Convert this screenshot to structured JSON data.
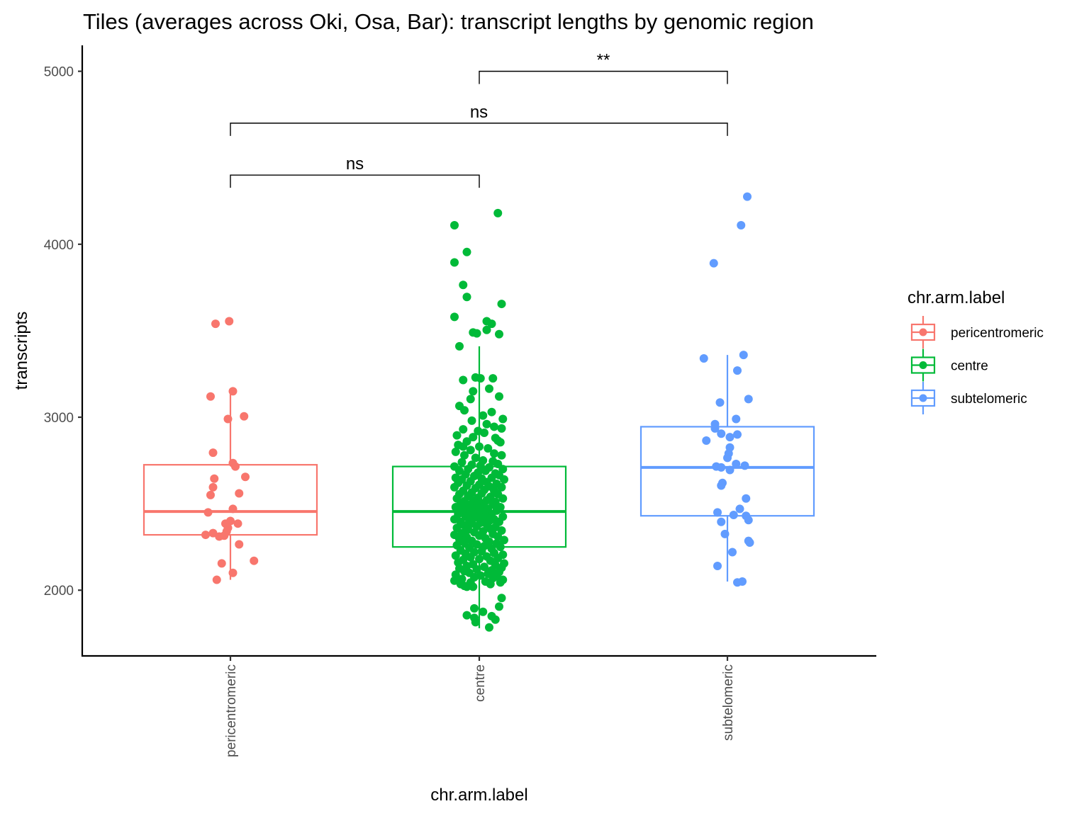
{
  "chart_data": {
    "type": "box",
    "title": "Tiles (averages across Oki, Osa, Bar): transcript lengths by genomic region",
    "xlabel": "chr.arm.label",
    "ylabel": "transcripts",
    "ylim": [
      1620,
      5150
    ],
    "yticks": [
      2000,
      3000,
      4000,
      5000
    ],
    "categories": [
      "pericentromeric",
      "centre",
      "subtelomeric"
    ],
    "colors": {
      "pericentromeric": "#F8766D",
      "centre": "#00BA38",
      "subtelomeric": "#619CFF"
    },
    "legend": {
      "title": "chr.arm.label",
      "position": "right",
      "entries": [
        "pericentromeric",
        "centre",
        "subtelomeric"
      ]
    },
    "boxes": [
      {
        "category": "pericentromeric",
        "whisker_low": 2060,
        "q1": 2320,
        "median": 2455,
        "q3": 2725,
        "whisker_high": 3150
      },
      {
        "category": "centre",
        "whisker_low": 1780,
        "q1": 2250,
        "median": 2455,
        "q3": 2715,
        "whisker_high": 3410
      },
      {
        "category": "subtelomeric",
        "whisker_low": 2050,
        "q1": 2430,
        "median": 2710,
        "q3": 2945,
        "whisker_high": 3360
      }
    ],
    "points": {
      "pericentromeric": [
        {
          "x": -0.12,
          "y": 3540
        },
        {
          "x": -0.01,
          "y": 3555
        },
        {
          "x": -0.16,
          "y": 3120
        },
        {
          "x": 0.02,
          "y": 3150
        },
        {
          "x": 0.11,
          "y": 3005
        },
        {
          "x": -0.02,
          "y": 2990
        },
        {
          "x": -0.14,
          "y": 2795
        },
        {
          "x": 0.02,
          "y": 2735
        },
        {
          "x": 0.04,
          "y": 2715
        },
        {
          "x": 0.12,
          "y": 2655
        },
        {
          "x": -0.13,
          "y": 2645
        },
        {
          "x": -0.14,
          "y": 2595
        },
        {
          "x": -0.16,
          "y": 2550
        },
        {
          "x": 0.07,
          "y": 2560
        },
        {
          "x": 0.02,
          "y": 2470
        },
        {
          "x": -0.18,
          "y": 2450
        },
        {
          "x": 0.0,
          "y": 2400
        },
        {
          "x": -0.04,
          "y": 2385
        },
        {
          "x": 0.06,
          "y": 2385
        },
        {
          "x": -0.02,
          "y": 2360
        },
        {
          "x": -0.03,
          "y": 2340
        },
        {
          "x": -0.14,
          "y": 2330
        },
        {
          "x": -0.2,
          "y": 2320
        },
        {
          "x": -0.09,
          "y": 2310
        },
        {
          "x": -0.05,
          "y": 2315
        },
        {
          "x": 0.07,
          "y": 2265
        },
        {
          "x": 0.19,
          "y": 2170
        },
        {
          "x": -0.07,
          "y": 2155
        },
        {
          "x": 0.02,
          "y": 2100
        },
        {
          "x": -0.11,
          "y": 2060
        }
      ],
      "centre": [
        {
          "x": 0.15,
          "y": 4180
        },
        {
          "x": -0.2,
          "y": 4110
        },
        {
          "x": -0.1,
          "y": 3955
        },
        {
          "x": -0.2,
          "y": 3895
        },
        {
          "x": -0.13,
          "y": 3765
        },
        {
          "x": -0.1,
          "y": 3695
        },
        {
          "x": 0.18,
          "y": 3655
        },
        {
          "x": -0.2,
          "y": 3580
        },
        {
          "x": 0.06,
          "y": 3555
        },
        {
          "x": 0.1,
          "y": 3540
        },
        {
          "x": -0.05,
          "y": 3490
        },
        {
          "x": -0.02,
          "y": 3485
        },
        {
          "x": 0.16,
          "y": 3480
        },
        {
          "x": 0.06,
          "y": 3505
        },
        {
          "x": -0.16,
          "y": 3410
        },
        {
          "x": -0.03,
          "y": 3230
        },
        {
          "x": 0.01,
          "y": 3225
        },
        {
          "x": 0.11,
          "y": 3225
        },
        {
          "x": -0.13,
          "y": 3215
        },
        {
          "x": 0.08,
          "y": 3165
        },
        {
          "x": -0.05,
          "y": 3150
        },
        {
          "x": 0.16,
          "y": 3120
        },
        {
          "x": -0.07,
          "y": 3105
        },
        {
          "x": -0.16,
          "y": 3065
        },
        {
          "x": -0.12,
          "y": 3040
        },
        {
          "x": 0.03,
          "y": 3010
        },
        {
          "x": 0.1,
          "y": 3030
        },
        {
          "x": 0.19,
          "y": 2990
        },
        {
          "x": -0.06,
          "y": 2980
        },
        {
          "x": 0.06,
          "y": 2960
        },
        {
          "x": -0.13,
          "y": 2930
        },
        {
          "x": 0.12,
          "y": 2945
        },
        {
          "x": 0.18,
          "y": 2935
        },
        {
          "x": -0.01,
          "y": 2920
        },
        {
          "x": 0.04,
          "y": 2910
        },
        {
          "x": -0.18,
          "y": 2895
        },
        {
          "x": -0.05,
          "y": 2885
        },
        {
          "x": 0.13,
          "y": 2880
        },
        {
          "x": 0.15,
          "y": 2865
        },
        {
          "x": -0.1,
          "y": 2860
        },
        {
          "x": 0.17,
          "y": 2855
        },
        {
          "x": -0.17,
          "y": 2840
        },
        {
          "x": -0.13,
          "y": 2830
        },
        {
          "x": 0.0,
          "y": 2830
        },
        {
          "x": 0.07,
          "y": 2820
        },
        {
          "x": -0.07,
          "y": 2810
        },
        {
          "x": -0.19,
          "y": 2800
        },
        {
          "x": 0.12,
          "y": 2790
        },
        {
          "x": -0.12,
          "y": 2780
        },
        {
          "x": 0.18,
          "y": 2780
        },
        {
          "x": -0.03,
          "y": 2765
        },
        {
          "x": 0.03,
          "y": 2750
        },
        {
          "x": 0.11,
          "y": 2745
        },
        {
          "x": -0.14,
          "y": 2740
        },
        {
          "x": 0.15,
          "y": 2730
        },
        {
          "x": -0.06,
          "y": 2725
        },
        {
          "x": 0.01,
          "y": 2720
        },
        {
          "x": -0.2,
          "y": 2715
        },
        {
          "x": 0.08,
          "y": 2710
        },
        {
          "x": -0.09,
          "y": 2700
        },
        {
          "x": 0.19,
          "y": 2700
        },
        {
          "x": -0.16,
          "y": 2690
        },
        {
          "x": 0.05,
          "y": 2690
        },
        {
          "x": -0.01,
          "y": 2680
        },
        {
          "x": 0.13,
          "y": 2675
        },
        {
          "x": -0.11,
          "y": 2670
        },
        {
          "x": 0.16,
          "y": 2665
        },
        {
          "x": -0.04,
          "y": 2660
        },
        {
          "x": -0.19,
          "y": 2650
        },
        {
          "x": 0.1,
          "y": 2650
        },
        {
          "x": 0.02,
          "y": 2645
        },
        {
          "x": -0.14,
          "y": 2640
        },
        {
          "x": 0.2,
          "y": 2640
        },
        {
          "x": -0.07,
          "y": 2630
        },
        {
          "x": 0.06,
          "y": 2625
        },
        {
          "x": -0.17,
          "y": 2620
        },
        {
          "x": 0.14,
          "y": 2615
        },
        {
          "x": 0.0,
          "y": 2610
        },
        {
          "x": -0.1,
          "y": 2605
        },
        {
          "x": 0.08,
          "y": 2600
        },
        {
          "x": -0.2,
          "y": 2595
        },
        {
          "x": 0.18,
          "y": 2595
        },
        {
          "x": -0.03,
          "y": 2590
        },
        {
          "x": 0.04,
          "y": 2580
        },
        {
          "x": -0.13,
          "y": 2575
        },
        {
          "x": 0.12,
          "y": 2575
        },
        {
          "x": -0.06,
          "y": 2565
        },
        {
          "x": 0.02,
          "y": 2560
        },
        {
          "x": -0.16,
          "y": 2555
        },
        {
          "x": 0.15,
          "y": 2555
        },
        {
          "x": -0.09,
          "y": 2545
        },
        {
          "x": 0.09,
          "y": 2540
        },
        {
          "x": -0.01,
          "y": 2535
        },
        {
          "x": -0.18,
          "y": 2530
        },
        {
          "x": 0.19,
          "y": 2530
        },
        {
          "x": -0.05,
          "y": 2520
        },
        {
          "x": 0.06,
          "y": 2520
        },
        {
          "x": -0.12,
          "y": 2515
        },
        {
          "x": 0.13,
          "y": 2510
        },
        {
          "x": 0.01,
          "y": 2505
        },
        {
          "x": -0.15,
          "y": 2500
        },
        {
          "x": -0.08,
          "y": 2495
        },
        {
          "x": 0.11,
          "y": 2495
        },
        {
          "x": -0.02,
          "y": 2490
        },
        {
          "x": 0.04,
          "y": 2485
        },
        {
          "x": -0.19,
          "y": 2480
        },
        {
          "x": 0.17,
          "y": 2480
        },
        {
          "x": -0.1,
          "y": 2475
        },
        {
          "x": 0.07,
          "y": 2470
        },
        {
          "x": -0.04,
          "y": 2470
        },
        {
          "x": 0.0,
          "y": 2465
        },
        {
          "x": -0.14,
          "y": 2460
        },
        {
          "x": 0.14,
          "y": 2460
        },
        {
          "x": -0.07,
          "y": 2455
        },
        {
          "x": 0.03,
          "y": 2450
        },
        {
          "x": -0.01,
          "y": 2445
        },
        {
          "x": -0.17,
          "y": 2440
        },
        {
          "x": 0.1,
          "y": 2440
        },
        {
          "x": -0.05,
          "y": 2435
        },
        {
          "x": 0.05,
          "y": 2430
        },
        {
          "x": -0.11,
          "y": 2425
        },
        {
          "x": 0.19,
          "y": 2425
        },
        {
          "x": -0.03,
          "y": 2420
        },
        {
          "x": 0.02,
          "y": 2415
        },
        {
          "x": -0.2,
          "y": 2410
        },
        {
          "x": 0.12,
          "y": 2410
        },
        {
          "x": -0.08,
          "y": 2405
        },
        {
          "x": 0.08,
          "y": 2400
        },
        {
          "x": -0.15,
          "y": 2395
        },
        {
          "x": 0.16,
          "y": 2395
        },
        {
          "x": 0.01,
          "y": 2390
        },
        {
          "x": -0.06,
          "y": 2385
        },
        {
          "x": 0.06,
          "y": 2380
        },
        {
          "x": -0.12,
          "y": 2375
        },
        {
          "x": -0.02,
          "y": 2370
        },
        {
          "x": 0.13,
          "y": 2365
        },
        {
          "x": -0.18,
          "y": 2360
        },
        {
          "x": 0.09,
          "y": 2355
        },
        {
          "x": -0.09,
          "y": 2350
        },
        {
          "x": 0.18,
          "y": 2345
        },
        {
          "x": 0.03,
          "y": 2340
        },
        {
          "x": -0.04,
          "y": 2335
        },
        {
          "x": -0.14,
          "y": 2330
        },
        {
          "x": 0.11,
          "y": 2325
        },
        {
          "x": -0.2,
          "y": 2320
        },
        {
          "x": 0.0,
          "y": 2315
        },
        {
          "x": 0.15,
          "y": 2310
        },
        {
          "x": -0.1,
          "y": 2305
        },
        {
          "x": 0.05,
          "y": 2300
        },
        {
          "x": -0.16,
          "y": 2295
        },
        {
          "x": 0.2,
          "y": 2290
        },
        {
          "x": -0.06,
          "y": 2285
        },
        {
          "x": 0.08,
          "y": 2280
        },
        {
          "x": -0.12,
          "y": 2275
        },
        {
          "x": 0.14,
          "y": 2270
        },
        {
          "x": -0.02,
          "y": 2265
        },
        {
          "x": -0.18,
          "y": 2260
        },
        {
          "x": 0.04,
          "y": 2255
        },
        {
          "x": 0.17,
          "y": 2250
        },
        {
          "x": -0.08,
          "y": 2245
        },
        {
          "x": 0.1,
          "y": 2240
        },
        {
          "x": -0.15,
          "y": 2230
        },
        {
          "x": 0.02,
          "y": 2225
        },
        {
          "x": -0.04,
          "y": 2220
        },
        {
          "x": 0.12,
          "y": 2215
        },
        {
          "x": -0.11,
          "y": 2210
        },
        {
          "x": 0.19,
          "y": 2205
        },
        {
          "x": -0.19,
          "y": 2200
        },
        {
          "x": 0.06,
          "y": 2195
        },
        {
          "x": -0.07,
          "y": 2190
        },
        {
          "x": 0.15,
          "y": 2185
        },
        {
          "x": 0.0,
          "y": 2180
        },
        {
          "x": -0.13,
          "y": 2175
        },
        {
          "x": 0.09,
          "y": 2170
        },
        {
          "x": -0.17,
          "y": 2160
        },
        {
          "x": 0.2,
          "y": 2155
        },
        {
          "x": -0.05,
          "y": 2150
        },
        {
          "x": 0.13,
          "y": 2145
        },
        {
          "x": -0.1,
          "y": 2140
        },
        {
          "x": 0.04,
          "y": 2135
        },
        {
          "x": 0.18,
          "y": 2130
        },
        {
          "x": -0.16,
          "y": 2125
        },
        {
          "x": -0.02,
          "y": 2120
        },
        {
          "x": 0.1,
          "y": 2115
        },
        {
          "x": -0.12,
          "y": 2110
        },
        {
          "x": 0.16,
          "y": 2105
        },
        {
          "x": -0.08,
          "y": 2100
        },
        {
          "x": 0.07,
          "y": 2095
        },
        {
          "x": -0.19,
          "y": 2090
        },
        {
          "x": 0.01,
          "y": 2085
        },
        {
          "x": 0.14,
          "y": 2080
        },
        {
          "x": -0.04,
          "y": 2075
        },
        {
          "x": 0.11,
          "y": 2070
        },
        {
          "x": -0.14,
          "y": 2065
        },
        {
          "x": 0.19,
          "y": 2060
        },
        {
          "x": -0.2,
          "y": 2055
        },
        {
          "x": 0.05,
          "y": 2050
        },
        {
          "x": -0.07,
          "y": 2045
        },
        {
          "x": 0.17,
          "y": 2045
        },
        {
          "x": -0.15,
          "y": 2035
        },
        {
          "x": 0.09,
          "y": 2035
        },
        {
          "x": -0.12,
          "y": 2025
        },
        {
          "x": -0.05,
          "y": 2020
        },
        {
          "x": -0.1,
          "y": 2020
        },
        {
          "x": 0.18,
          "y": 1955
        },
        {
          "x": 0.16,
          "y": 1905
        },
        {
          "x": -0.04,
          "y": 1895
        },
        {
          "x": 0.03,
          "y": 1875
        },
        {
          "x": -0.1,
          "y": 1855
        },
        {
          "x": 0.1,
          "y": 1850
        },
        {
          "x": -0.04,
          "y": 1840
        },
        {
          "x": 0.13,
          "y": 1830
        },
        {
          "x": -0.03,
          "y": 1815
        },
        {
          "x": 0.08,
          "y": 1785
        }
      ],
      "subtelomeric": [
        {
          "x": 0.16,
          "y": 4275
        },
        {
          "x": 0.11,
          "y": 4110
        },
        {
          "x": -0.11,
          "y": 3890
        },
        {
          "x": 0.13,
          "y": 3360
        },
        {
          "x": -0.19,
          "y": 3340
        },
        {
          "x": 0.08,
          "y": 3270
        },
        {
          "x": 0.17,
          "y": 3105
        },
        {
          "x": -0.06,
          "y": 3085
        },
        {
          "x": 0.07,
          "y": 2990
        },
        {
          "x": -0.1,
          "y": 2960
        },
        {
          "x": -0.1,
          "y": 2935
        },
        {
          "x": -0.05,
          "y": 2905
        },
        {
          "x": 0.08,
          "y": 2900
        },
        {
          "x": 0.02,
          "y": 2885
        },
        {
          "x": -0.17,
          "y": 2865
        },
        {
          "x": 0.02,
          "y": 2825
        },
        {
          "x": 0.01,
          "y": 2790
        },
        {
          "x": 0.0,
          "y": 2765
        },
        {
          "x": 0.07,
          "y": 2730
        },
        {
          "x": 0.14,
          "y": 2720
        },
        {
          "x": -0.09,
          "y": 2715
        },
        {
          "x": -0.05,
          "y": 2710
        },
        {
          "x": 0.02,
          "y": 2695
        },
        {
          "x": -0.04,
          "y": 2620
        },
        {
          "x": -0.05,
          "y": 2605
        },
        {
          "x": 0.15,
          "y": 2530
        },
        {
          "x": 0.1,
          "y": 2470
        },
        {
          "x": -0.08,
          "y": 2450
        },
        {
          "x": 0.05,
          "y": 2435
        },
        {
          "x": 0.15,
          "y": 2430
        },
        {
          "x": -0.05,
          "y": 2395
        },
        {
          "x": 0.17,
          "y": 2405
        },
        {
          "x": -0.02,
          "y": 2325
        },
        {
          "x": 0.17,
          "y": 2285
        },
        {
          "x": 0.18,
          "y": 2275
        },
        {
          "x": 0.04,
          "y": 2220
        },
        {
          "x": -0.08,
          "y": 2140
        },
        {
          "x": 0.08,
          "y": 2045
        },
        {
          "x": 0.12,
          "y": 2050
        }
      ]
    },
    "comparisons": [
      {
        "groups": [
          "pericentromeric",
          "centre"
        ],
        "label": "ns",
        "y": 4400
      },
      {
        "groups": [
          "pericentromeric",
          "subtelomeric"
        ],
        "label": "ns",
        "y": 4700
      },
      {
        "groups": [
          "centre",
          "subtelomeric"
        ],
        "label": "**",
        "y": 5000
      }
    ]
  }
}
